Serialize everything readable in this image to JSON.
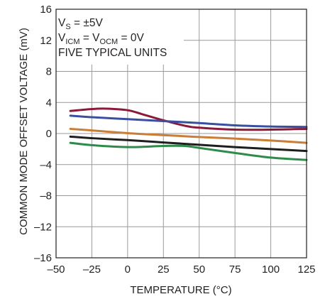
{
  "chart_data": {
    "type": "line",
    "title": "",
    "xlabel": "TEMPERATURE (°C)",
    "ylabel": "COMMON MODE OFFSET VOLTAGE (mV)",
    "xlim": [
      -50,
      125
    ],
    "ylim": [
      -16,
      16
    ],
    "x_ticks": [
      -50,
      -25,
      0,
      25,
      50,
      75,
      100,
      125
    ],
    "y_ticks": [
      -16,
      -12,
      -8,
      -4,
      0,
      4,
      8,
      12,
      16
    ],
    "x_tick_labels": [
      "–50",
      "–25",
      "0",
      "25",
      "50",
      "75",
      "100",
      "125"
    ],
    "y_tick_labels": [
      "–16",
      "–12",
      "–8",
      "–4",
      "0",
      "4",
      "8",
      "12",
      "16"
    ],
    "grid": true,
    "annotations": {
      "line1": {
        "main": "V",
        "sub": "S",
        "rest": " = ±5V"
      },
      "line2": {
        "p1": "V",
        "s1": "ICM",
        "p2": " = V",
        "s2": "OCM",
        "p3": " = 0V"
      },
      "line3": "FIVE TYPICAL UNITS"
    },
    "series": [
      {
        "color": "#8b1a3a",
        "x": [
          -40,
          -25,
          -15,
          0,
          10,
          25,
          40,
          50,
          75,
          100,
          125
        ],
        "y": [
          2.9,
          3.15,
          3.2,
          3.0,
          2.5,
          1.7,
          1.0,
          0.75,
          0.5,
          0.5,
          0.6
        ]
      },
      {
        "color": "#3a4fa0",
        "x": [
          -40,
          -25,
          0,
          25,
          50,
          75,
          100,
          125
        ],
        "y": [
          2.3,
          2.1,
          1.85,
          1.6,
          1.35,
          1.05,
          0.9,
          0.85
        ]
      },
      {
        "color": "#c97d35",
        "x": [
          -40,
          -25,
          0,
          25,
          50,
          75,
          100,
          125
        ],
        "y": [
          0.6,
          0.4,
          0.05,
          -0.2,
          -0.45,
          -0.65,
          -0.9,
          -1.2
        ]
      },
      {
        "color": "#1e1e1e",
        "x": [
          -40,
          -25,
          0,
          25,
          50,
          75,
          100,
          125
        ],
        "y": [
          -0.4,
          -0.6,
          -0.85,
          -1.15,
          -1.45,
          -1.75,
          -2.0,
          -2.25
        ]
      },
      {
        "color": "#2e8b4a",
        "x": [
          -40,
          -25,
          0,
          25,
          40,
          50,
          75,
          100,
          125
        ],
        "y": [
          -1.2,
          -1.5,
          -1.75,
          -1.6,
          -1.6,
          -1.85,
          -2.5,
          -3.1,
          -3.4
        ]
      }
    ]
  }
}
